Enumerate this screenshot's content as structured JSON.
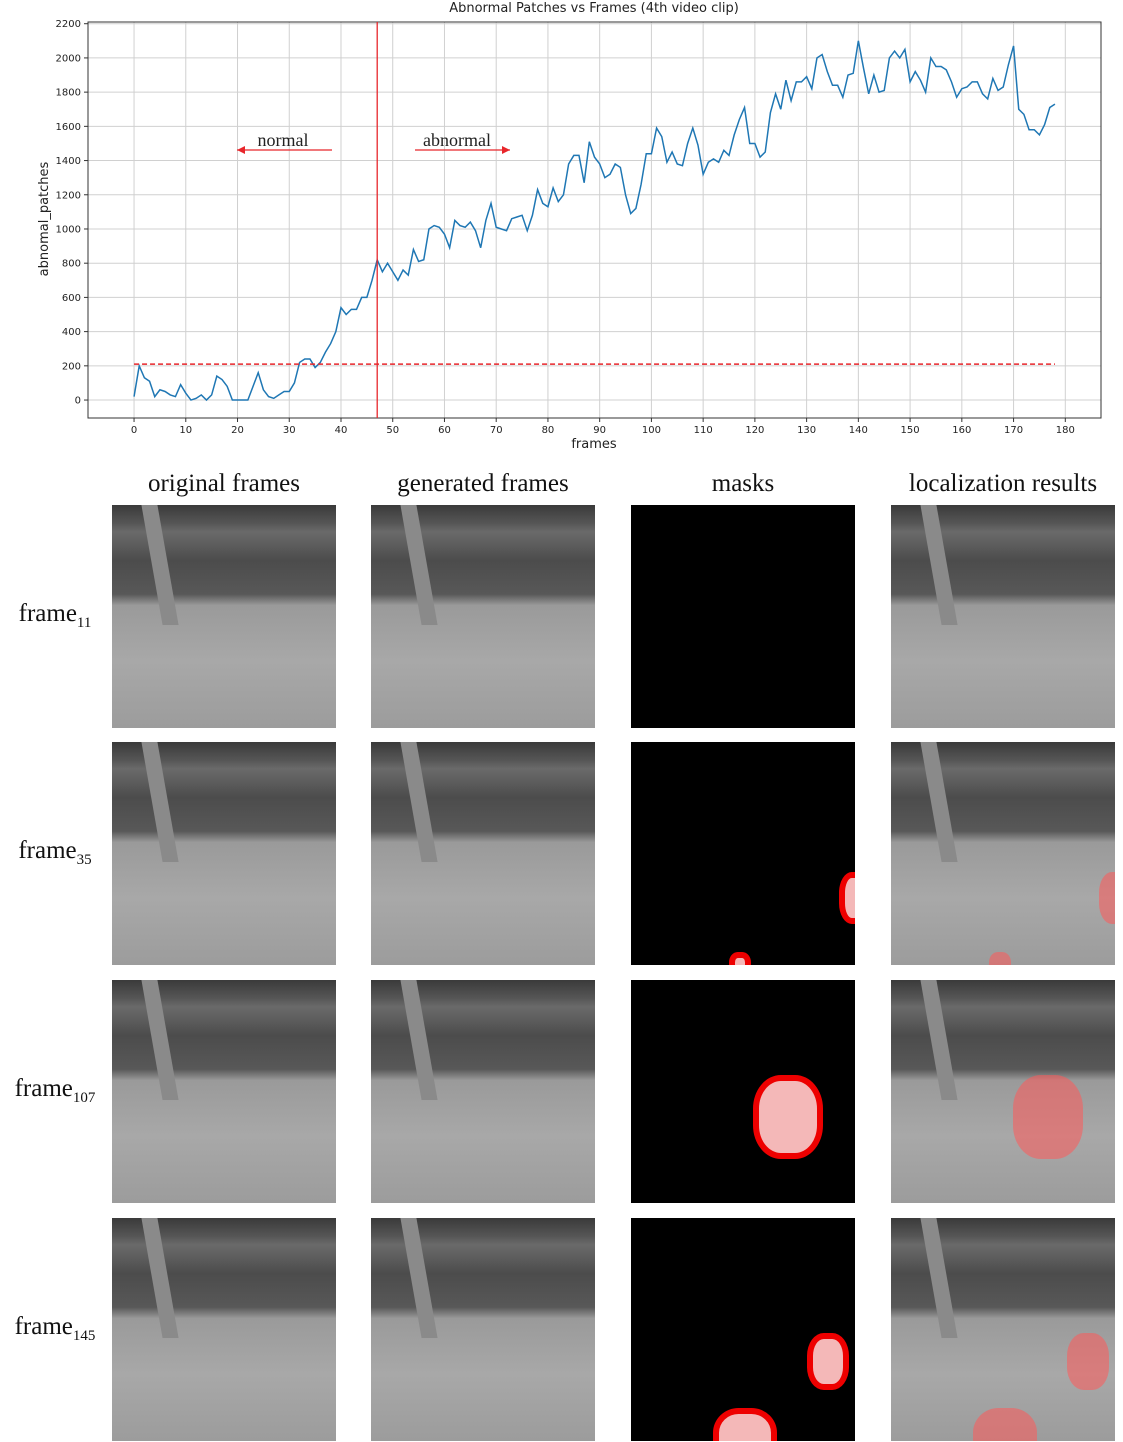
{
  "chart_data": {
    "type": "line",
    "title": "Abnormal Patches vs Frames (4th video clip)",
    "x_label": "frames",
    "y_label": "abnomal_patches",
    "x": [
      0,
      1,
      2,
      3,
      4,
      5,
      6,
      7,
      8,
      9,
      10,
      11,
      12,
      13,
      14,
      15,
      16,
      17,
      18,
      19,
      20,
      21,
      22,
      23,
      24,
      25,
      26,
      27,
      28,
      29,
      30,
      31,
      32,
      33,
      34,
      35,
      36,
      37,
      38,
      39,
      40,
      41,
      42,
      43,
      44,
      45,
      46,
      47,
      48,
      49,
      50,
      51,
      52,
      53,
      54,
      55,
      56,
      57,
      58,
      59,
      60,
      61,
      62,
      63,
      64,
      65,
      66,
      67,
      68,
      69,
      70,
      71,
      72,
      73,
      74,
      75,
      76,
      77,
      78,
      79,
      80,
      81,
      82,
      83,
      84,
      85,
      86,
      87,
      88,
      89,
      90,
      91,
      92,
      93,
      94,
      95,
      96,
      97,
      98,
      99,
      100,
      101,
      102,
      103,
      104,
      105,
      106,
      107,
      108,
      109,
      110,
      111,
      112,
      113,
      114,
      115,
      116,
      117,
      118,
      119,
      120,
      121,
      122,
      123,
      124,
      125,
      126,
      127,
      128,
      129,
      130,
      131,
      132,
      133,
      134,
      135,
      136,
      137,
      138,
      139,
      140,
      141,
      142,
      143,
      144,
      145,
      146,
      147,
      148,
      149,
      150,
      151,
      152,
      153,
      154,
      155,
      156,
      157,
      158,
      159,
      160,
      161,
      162,
      163,
      164,
      165,
      166,
      167,
      168,
      169,
      170,
      171,
      172,
      173,
      174,
      175,
      176,
      177,
      178
    ],
    "series": [
      {
        "color": "#1f77b4",
        "values": [
          20,
          200,
          130,
          110,
          20,
          60,
          50,
          30,
          20,
          90,
          40,
          0,
          10,
          30,
          0,
          30,
          140,
          120,
          80,
          0,
          0,
          0,
          0,
          80,
          160,
          60,
          20,
          10,
          30,
          50,
          50,
          100,
          220,
          240,
          240,
          190,
          220,
          280,
          330,
          400,
          540,
          500,
          530,
          530,
          600,
          600,
          700,
          820,
          750,
          800,
          750,
          700,
          760,
          730,
          880,
          810,
          820,
          1000,
          1020,
          1010,
          970,
          890,
          1050,
          1020,
          1010,
          1040,
          990,
          890,
          1050,
          1150,
          1010,
          1000,
          990,
          1060,
          1070,
          1080,
          990,
          1080,
          1230,
          1150,
          1130,
          1240,
          1160,
          1200,
          1380,
          1430,
          1430,
          1270,
          1510,
          1420,
          1380,
          1300,
          1320,
          1380,
          1360,
          1200,
          1090,
          1120,
          1260,
          1440,
          1440,
          1590,
          1540,
          1390,
          1450,
          1380,
          1370,
          1500,
          1590,
          1490,
          1320,
          1390,
          1410,
          1390,
          1460,
          1430,
          1550,
          1640,
          1710,
          1500,
          1500,
          1420,
          1450,
          1680,
          1790,
          1700,
          1870,
          1750,
          1860,
          1860,
          1890,
          1820,
          2000,
          2020,
          1920,
          1840,
          1840,
          1770,
          1900,
          1910,
          2100,
          1940,
          1790,
          1900,
          1800,
          1810,
          2000,
          2040,
          2000,
          2050,
          1860,
          1920,
          1870,
          1800,
          2000,
          1950,
          1950,
          1930,
          1860,
          1770,
          1820,
          1830,
          1860,
          1860,
          1790,
          1760,
          1880,
          1810,
          1830,
          1960,
          2070,
          1700,
          1670,
          1580,
          1580,
          1550,
          1610,
          1710,
          1730
        ]
      }
    ],
    "threshold": 210,
    "threshold_color": "#e8262b",
    "vline": 47,
    "vline_color": "#e8262b",
    "annotations": [
      "normal",
      "abnormal"
    ],
    "xlim": [
      -8.9,
      186.9
    ],
    "ylim": [
      -105,
      2210
    ],
    "xticks": [
      0,
      10,
      20,
      30,
      40,
      50,
      60,
      70,
      80,
      90,
      100,
      110,
      120,
      130,
      140,
      150,
      160,
      170,
      180
    ],
    "yticks": [
      0,
      200,
      400,
      600,
      800,
      1000,
      1200,
      1400,
      1600,
      1800,
      2000,
      2200
    ],
    "grid": true
  },
  "figure": {
    "columns": [
      "original frames",
      "generated frames",
      "masks",
      "localization results"
    ],
    "rows": [
      {
        "label": "frame",
        "subscript": "11"
      },
      {
        "label": "frame",
        "subscript": "35"
      },
      {
        "label": "frame",
        "subscript": "107"
      },
      {
        "label": "frame",
        "subscript": "145"
      }
    ]
  }
}
